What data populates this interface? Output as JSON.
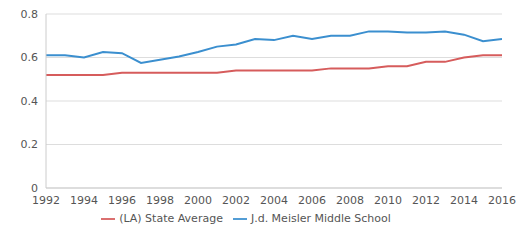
{
  "chart_data": {
    "type": "line",
    "x": [
      1992,
      1993,
      1994,
      1995,
      1996,
      1997,
      1998,
      1999,
      2000,
      2001,
      2002,
      2003,
      2004,
      2005,
      2006,
      2007,
      2008,
      2009,
      2010,
      2011,
      2012,
      2013,
      2014,
      2015,
      2016
    ],
    "series": [
      {
        "name": "J.d. Meisler Middle School",
        "color": "#3b8fcf",
        "values": [
          0.61,
          0.61,
          0.6,
          0.625,
          0.62,
          0.575,
          0.59,
          0.605,
          0.625,
          0.65,
          0.66,
          0.685,
          0.68,
          0.7,
          0.685,
          0.7,
          0.7,
          0.72,
          0.72,
          0.715,
          0.715,
          0.72,
          0.705,
          0.675,
          0.685
        ]
      },
      {
        "name": "(LA) State Average",
        "color": "#d65c5c",
        "values": [
          0.52,
          0.52,
          0.52,
          0.52,
          0.53,
          0.53,
          0.53,
          0.53,
          0.53,
          0.53,
          0.54,
          0.54,
          0.54,
          0.54,
          0.54,
          0.55,
          0.55,
          0.55,
          0.56,
          0.56,
          0.58,
          0.58,
          0.6,
          0.61,
          0.61
        ]
      }
    ],
    "xlim": [
      1992,
      2016
    ],
    "xticks": [
      1992,
      1994,
      1996,
      1998,
      2000,
      2002,
      2004,
      2006,
      2008,
      2010,
      2012,
      2014,
      2016
    ],
    "ylim": [
      0,
      0.8
    ],
    "yticks": [
      0,
      0.2,
      0.4,
      0.6,
      0.8
    ],
    "grid": true,
    "legend": "bottom"
  }
}
